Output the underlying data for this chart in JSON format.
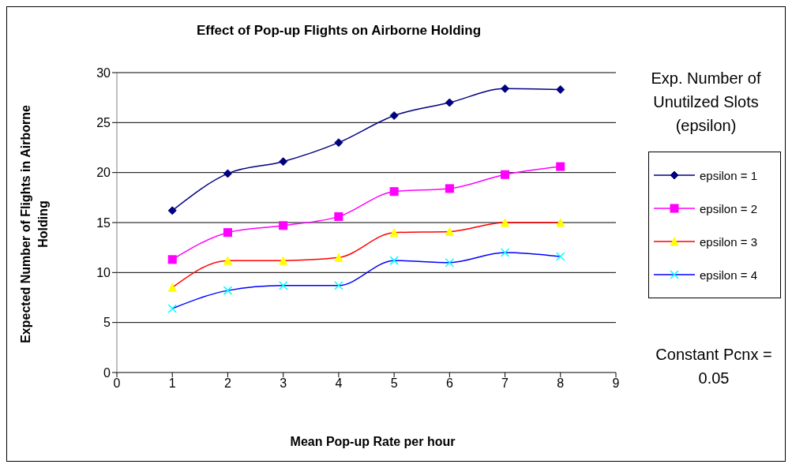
{
  "chart_data": {
    "type": "line",
    "title": "Effect of Pop-up Flights on Airborne Holding",
    "xlabel": "Mean Pop-up Rate per hour",
    "ylabel": "Expected Number of Flights in Airborne Holding",
    "legend_title": "Exp. Number of Unutilzed Slots (epsilon)",
    "annotations": [
      "Constant Pcnx = 0.05"
    ],
    "x": [
      1,
      2,
      3,
      4,
      5,
      6,
      7,
      8
    ],
    "series": [
      {
        "name": "epsilon = 1",
        "color": "#000080",
        "marker": "diamond",
        "values": [
          16.2,
          19.9,
          21.1,
          23.0,
          25.7,
          27.0,
          28.4,
          28.3
        ]
      },
      {
        "name": "epsilon = 2",
        "color": "#ff00ff",
        "marker": "square",
        "values": [
          11.3,
          14.0,
          14.7,
          15.6,
          18.1,
          18.4,
          19.8,
          20.6
        ]
      },
      {
        "name": "epsilon = 3",
        "color": "#ff0000",
        "marker": "triangle",
        "values": [
          8.5,
          11.2,
          11.2,
          11.5,
          14.0,
          14.1,
          15.0,
          15.0
        ]
      },
      {
        "name": "epsilon = 4",
        "color": "#0000ff",
        "marker": "cross",
        "values": [
          6.4,
          8.2,
          8.7,
          8.7,
          11.2,
          11.0,
          12.0,
          11.6
        ]
      }
    ],
    "xlim": [
      0,
      9
    ],
    "xticks": [
      0,
      1,
      2,
      3,
      4,
      5,
      6,
      7,
      8,
      9
    ],
    "ylim": [
      0,
      30
    ],
    "yticks": [
      0,
      5,
      10,
      15,
      20,
      25,
      30
    ],
    "grid": "y",
    "legend": "right",
    "line_style": "solid"
  }
}
